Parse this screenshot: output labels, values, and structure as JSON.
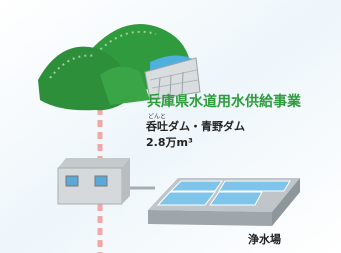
{
  "title": "兵庫県水道用水供給事業",
  "dam": {
    "ruby": "どんと",
    "name": "呑吐ダム・青野ダム",
    "capacity": "2.8万m³"
  },
  "plant": {
    "label": "浄水場"
  }
}
